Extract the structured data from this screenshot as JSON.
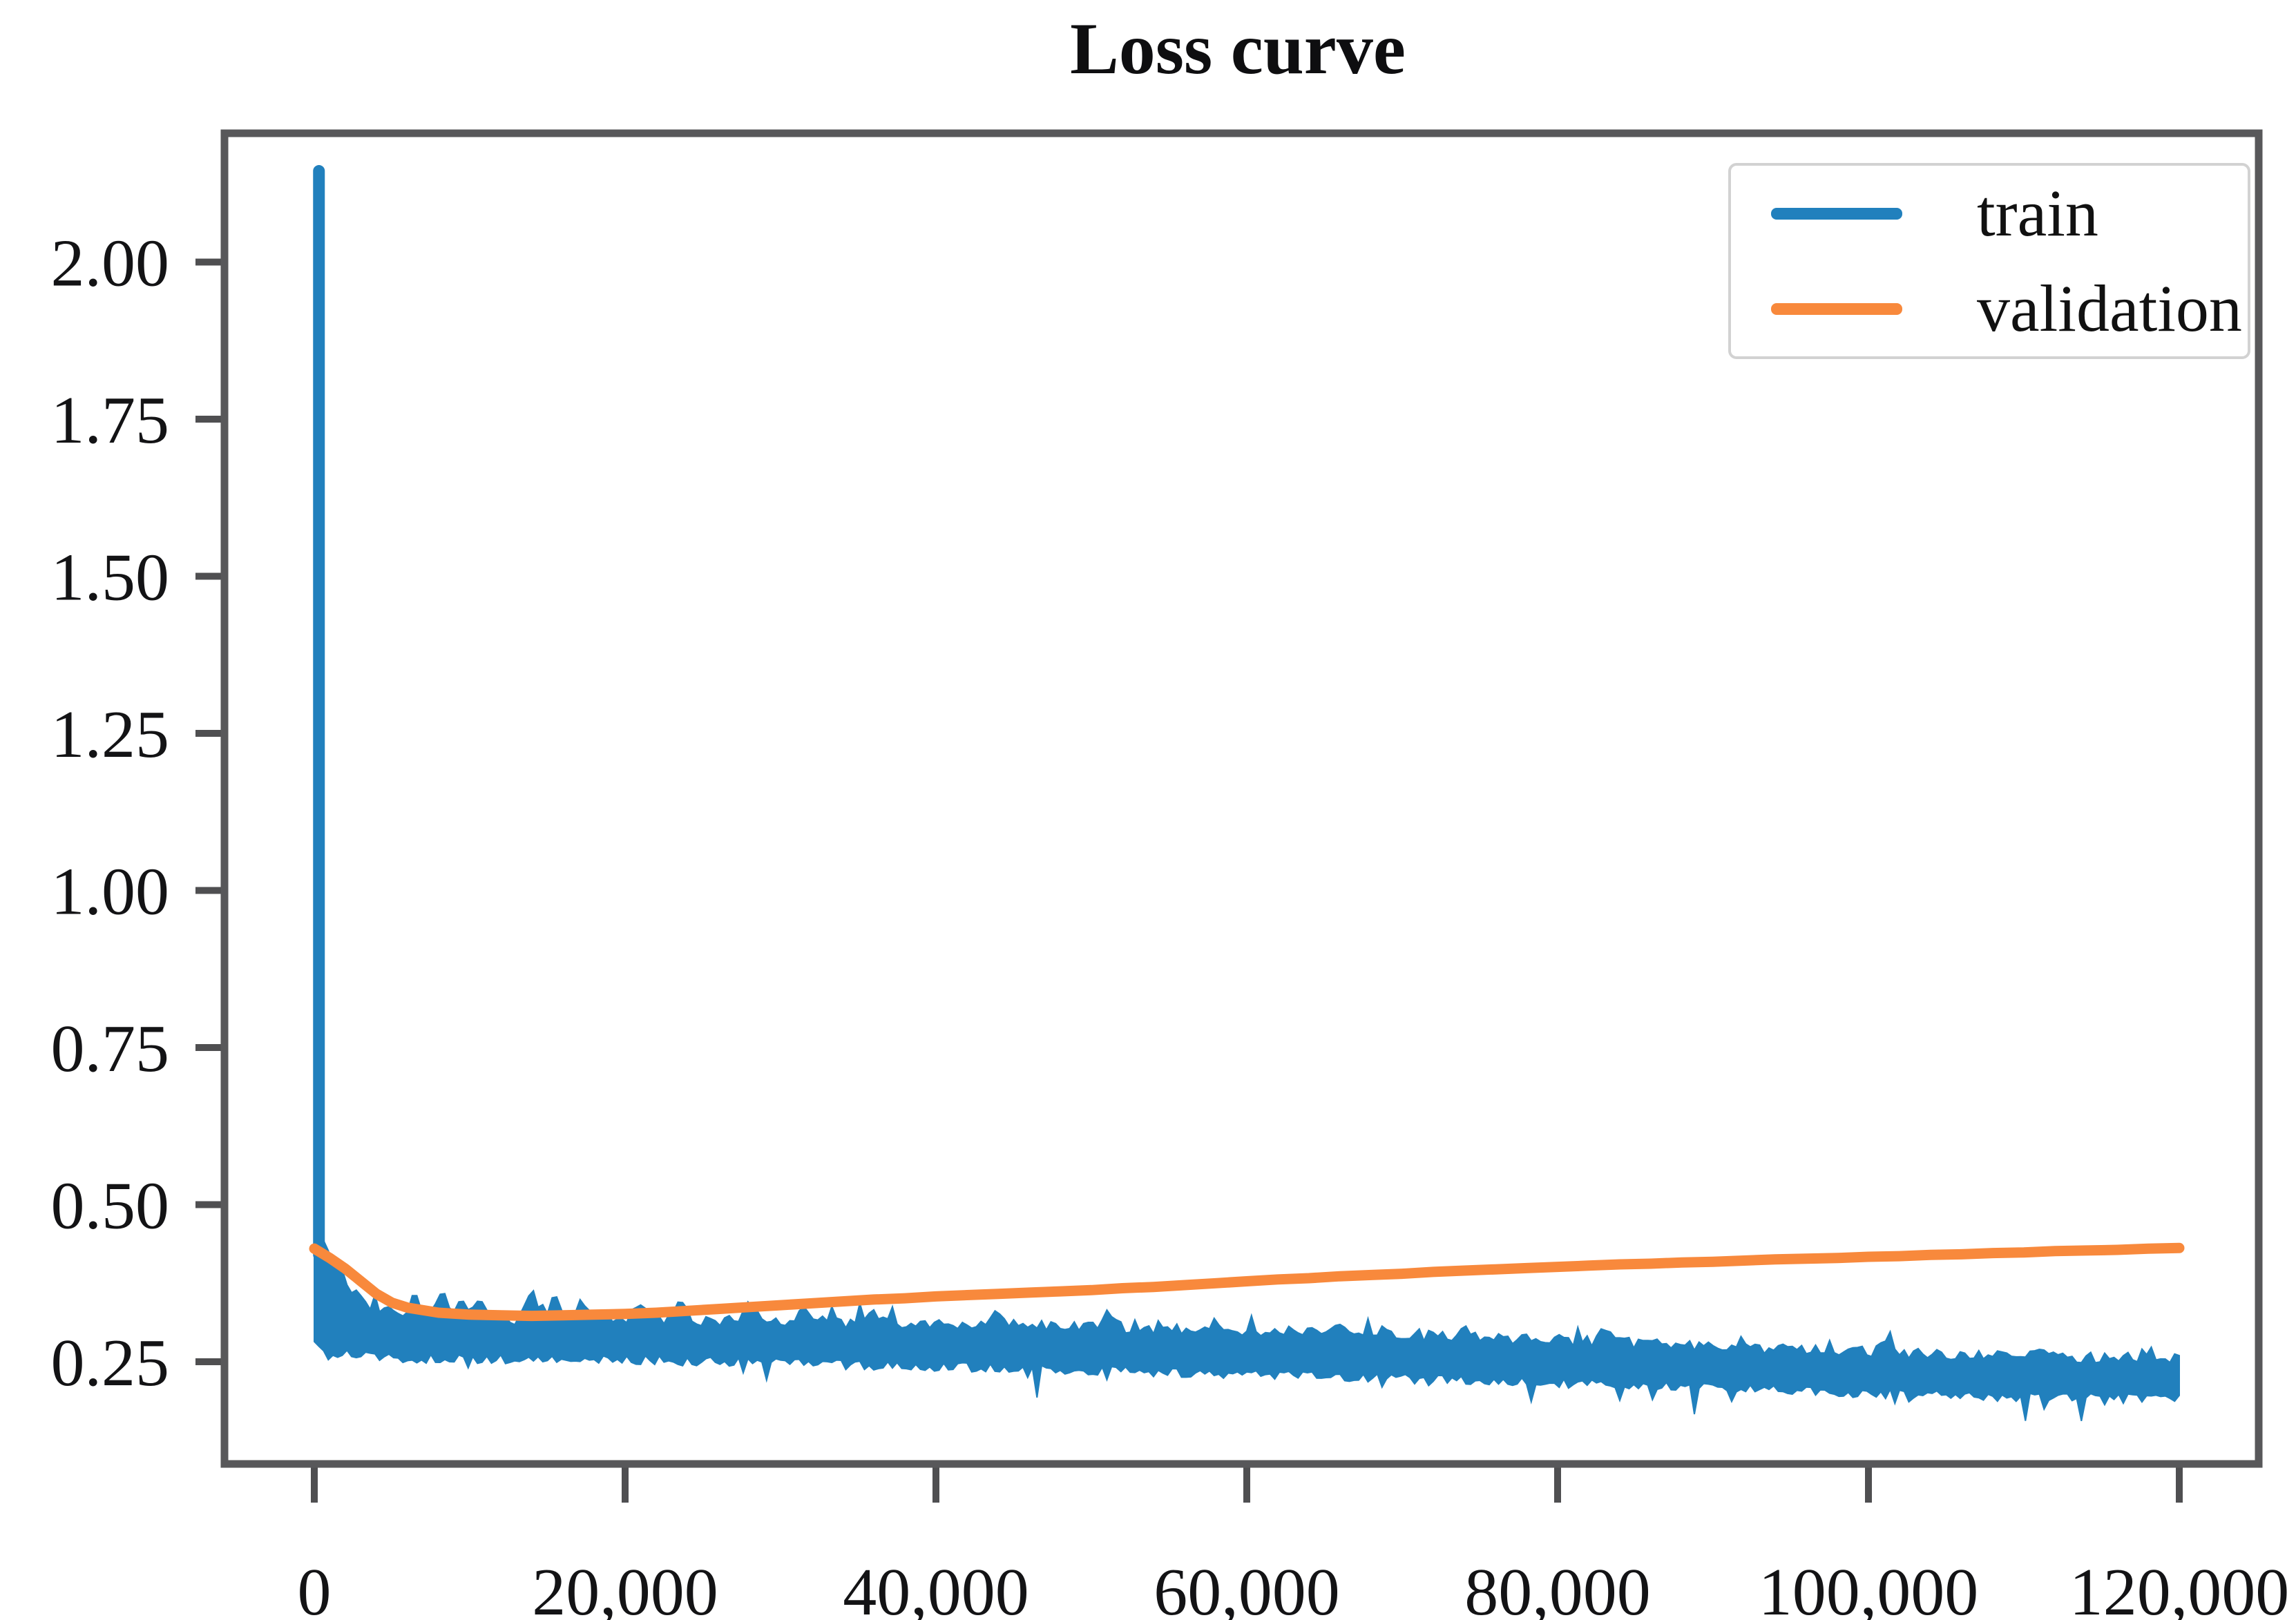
{
  "chart_data": {
    "type": "line",
    "title": "Loss curve",
    "xlabel": "",
    "ylabel": "",
    "x_tick_labels": [
      "0",
      "20,000",
      "40,000",
      "60,000",
      "80,000",
      "100,000",
      "120,000"
    ],
    "x_tick_values": [
      0,
      20000,
      40000,
      60000,
      80000,
      100000,
      120000
    ],
    "y_tick_labels": [
      "2.00",
      "1.75",
      "1.50",
      "1.25",
      "1.00",
      "0.75",
      "0.50",
      "0.25"
    ],
    "y_tick_values": [
      2.0,
      1.75,
      1.5,
      1.25,
      1.0,
      0.75,
      0.5,
      0.25
    ],
    "xlim": [
      -5700,
      125200
    ],
    "ylim": [
      0.09,
      2.21
    ],
    "grid": "off",
    "legend_position": "upper right",
    "series": [
      {
        "name": "train",
        "color": "#2180bd",
        "style": "noisy-band",
        "spike": {
          "x": 300,
          "peak": 2.145,
          "bottom": 0.42
        },
        "band": [
          [
            0,
            0.46,
            0.285
          ],
          [
            800,
            0.43,
            0.275
          ],
          [
            1500,
            0.4,
            0.27
          ],
          [
            2500,
            0.362,
            0.268
          ],
          [
            4000,
            0.335,
            0.265
          ],
          [
            6000,
            0.322,
            0.263
          ],
          [
            10000,
            0.318,
            0.261
          ],
          [
            15000,
            0.317,
            0.262
          ],
          [
            20000,
            0.318,
            0.26
          ],
          [
            25000,
            0.316,
            0.258
          ],
          [
            30000,
            0.313,
            0.255
          ],
          [
            35000,
            0.312,
            0.252
          ],
          [
            40000,
            0.31,
            0.25
          ],
          [
            45000,
            0.308,
            0.247
          ],
          [
            50000,
            0.306,
            0.244
          ],
          [
            55000,
            0.303,
            0.24
          ],
          [
            60000,
            0.3,
            0.237
          ],
          [
            65000,
            0.297,
            0.234
          ],
          [
            70000,
            0.293,
            0.23
          ],
          [
            75000,
            0.289,
            0.227
          ],
          [
            80000,
            0.285,
            0.223
          ],
          [
            85000,
            0.28,
            0.219
          ],
          [
            90000,
            0.275,
            0.215
          ],
          [
            95000,
            0.27,
            0.211
          ],
          [
            100000,
            0.266,
            0.207
          ],
          [
            105000,
            0.262,
            0.204
          ],
          [
            110000,
            0.259,
            0.201
          ],
          [
            115000,
            0.257,
            0.199
          ],
          [
            120000,
            0.256,
            0.198
          ]
        ],
        "top_spikes": [
          [
            6500,
            0.03
          ],
          [
            8200,
            0.04
          ],
          [
            9500,
            0.035
          ],
          [
            10800,
            0.03
          ],
          [
            14000,
            0.042
          ],
          [
            15500,
            0.035
          ],
          [
            17200,
            0.03
          ],
          [
            21000,
            0.028
          ],
          [
            23500,
            0.032
          ],
          [
            28000,
            0.03
          ],
          [
            31500,
            0.028
          ],
          [
            36000,
            0.022
          ],
          [
            44000,
            0.025
          ],
          [
            51000,
            0.022
          ],
          [
            58000,
            0.018
          ],
          [
            66000,
            0.02
          ],
          [
            74000,
            0.018
          ],
          [
            83000,
            0.016
          ],
          [
            92000,
            0.015
          ],
          [
            101000,
            0.014
          ],
          [
            111000,
            0.013
          ],
          [
            118000,
            0.012
          ]
        ],
        "noise": {
          "seed": 20,
          "up": 0.009,
          "down": 0.015,
          "step": 300
        }
      },
      {
        "name": "validation",
        "color": "#f8893c",
        "style": "line",
        "line_width": 15,
        "points": [
          [
            0,
            0.43
          ],
          [
            1000,
            0.415
          ],
          [
            2000,
            0.398
          ],
          [
            3000,
            0.378
          ],
          [
            4000,
            0.358
          ],
          [
            5000,
            0.344
          ],
          [
            6000,
            0.336
          ],
          [
            8000,
            0.328
          ],
          [
            10000,
            0.325
          ],
          [
            12000,
            0.324
          ],
          [
            14000,
            0.323
          ],
          [
            16000,
            0.324
          ],
          [
            18000,
            0.325
          ],
          [
            20000,
            0.326
          ],
          [
            22000,
            0.328
          ],
          [
            24000,
            0.331
          ],
          [
            26000,
            0.334
          ],
          [
            28000,
            0.337
          ],
          [
            30000,
            0.34
          ],
          [
            32000,
            0.343
          ],
          [
            34000,
            0.346
          ],
          [
            36000,
            0.349
          ],
          [
            38000,
            0.351
          ],
          [
            40000,
            0.354
          ],
          [
            42000,
            0.356
          ],
          [
            44000,
            0.358
          ],
          [
            46000,
            0.36
          ],
          [
            48000,
            0.362
          ],
          [
            50000,
            0.364
          ],
          [
            52000,
            0.367
          ],
          [
            54000,
            0.369
          ],
          [
            56000,
            0.372
          ],
          [
            58000,
            0.375
          ],
          [
            60000,
            0.378
          ],
          [
            62000,
            0.381
          ],
          [
            64000,
            0.383
          ],
          [
            66000,
            0.386
          ],
          [
            68000,
            0.388
          ],
          [
            70000,
            0.39
          ],
          [
            72000,
            0.393
          ],
          [
            74000,
            0.395
          ],
          [
            76000,
            0.397
          ],
          [
            78000,
            0.399
          ],
          [
            80000,
            0.401
          ],
          [
            82000,
            0.403
          ],
          [
            84000,
            0.405
          ],
          [
            86000,
            0.406
          ],
          [
            88000,
            0.408
          ],
          [
            90000,
            0.409
          ],
          [
            92000,
            0.411
          ],
          [
            94000,
            0.413
          ],
          [
            96000,
            0.414
          ],
          [
            98000,
            0.415
          ],
          [
            100000,
            0.417
          ],
          [
            102000,
            0.418
          ],
          [
            104000,
            0.42
          ],
          [
            106000,
            0.421
          ],
          [
            108000,
            0.423
          ],
          [
            110000,
            0.424
          ],
          [
            112000,
            0.426
          ],
          [
            114000,
            0.427
          ],
          [
            116000,
            0.428
          ],
          [
            118000,
            0.43
          ],
          [
            120000,
            0.431
          ]
        ]
      }
    ],
    "frame_color": "#58585a",
    "tick_color": "#4f4f51"
  }
}
